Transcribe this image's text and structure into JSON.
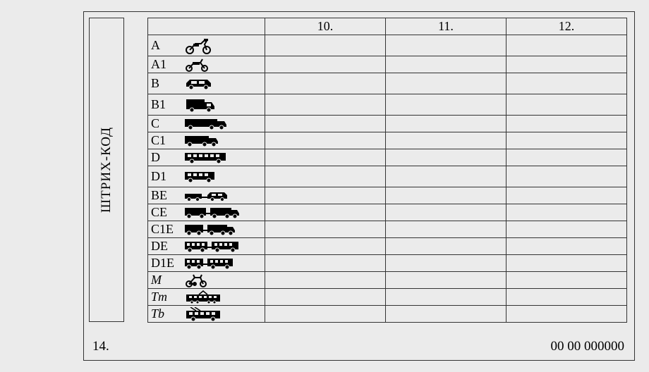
{
  "barcode_label": "ШТРИХ-КОД",
  "footer": {
    "left": "14.",
    "right": "00 00 000000"
  },
  "headers": {
    "col10": "10.",
    "col11": "11.",
    "col12": "12."
  },
  "categories": [
    {
      "code": "A",
      "icon": "motorcycle",
      "tall": true
    },
    {
      "code": "A1",
      "icon": "moped"
    },
    {
      "code": "B",
      "icon": "car",
      "tall": true
    },
    {
      "code": "B1",
      "icon": "van",
      "tall": true
    },
    {
      "code": "C",
      "icon": "truck"
    },
    {
      "code": "C1",
      "icon": "truck-small"
    },
    {
      "code": "D",
      "icon": "bus"
    },
    {
      "code": "D1",
      "icon": "bus-short",
      "tall": true
    },
    {
      "code": "BE",
      "icon": "car-trailer"
    },
    {
      "code": "CE",
      "icon": "truck-trailer"
    },
    {
      "code": "C1E",
      "icon": "truck-small-trailer"
    },
    {
      "code": "DE",
      "icon": "bus-trailer"
    },
    {
      "code": "D1E",
      "icon": "bus-short-trailer"
    },
    {
      "code": "M",
      "icon": "bicycle-moped",
      "italic": true
    },
    {
      "code": "Tm",
      "icon": "tram",
      "italic": true
    },
    {
      "code": "Tb",
      "icon": "trolleybus",
      "italic": true
    }
  ],
  "colors": {
    "stroke": "#000",
    "fill": "#000",
    "bg": "#ebebeb"
  }
}
